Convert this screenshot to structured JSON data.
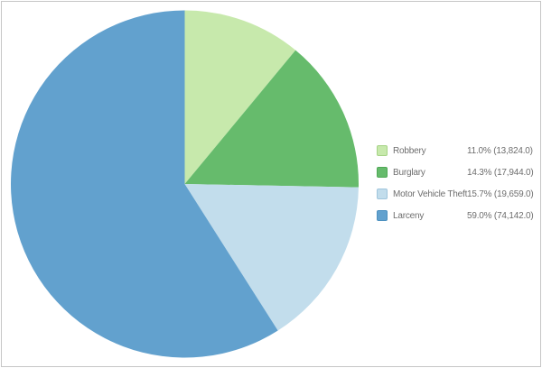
{
  "chart_data": {
    "type": "pie",
    "title": "",
    "legend_position": "right",
    "start_angle": "top",
    "direction": "clockwise",
    "slices": [
      {
        "label": "Robbery",
        "percent": 11.0,
        "value": 13824.0,
        "display": "11.0% (13,824.0)",
        "color": "#c7e9ac",
        "border": "#a6d386"
      },
      {
        "label": "Burglary",
        "percent": 14.3,
        "value": 17944.0,
        "display": "14.3% (17,944.0)",
        "color": "#66bb6c",
        "border": "#4fa855"
      },
      {
        "label": "Motor Vehicle Theft",
        "percent": 15.7,
        "value": 19659.0,
        "display": "15.7% (19,659.0)",
        "color": "#c2ddec",
        "border": "#9fc5dc"
      },
      {
        "label": "Larceny",
        "percent": 59.0,
        "value": 74142.0,
        "display": "59.0% (74,142.0)",
        "color": "#62a1ce",
        "border": "#4c90c0"
      }
    ]
  },
  "frame": {
    "border_color": "#c6c6c6",
    "background": "#ffffff"
  },
  "legend": {
    "text_color": "#6e6e6e"
  }
}
